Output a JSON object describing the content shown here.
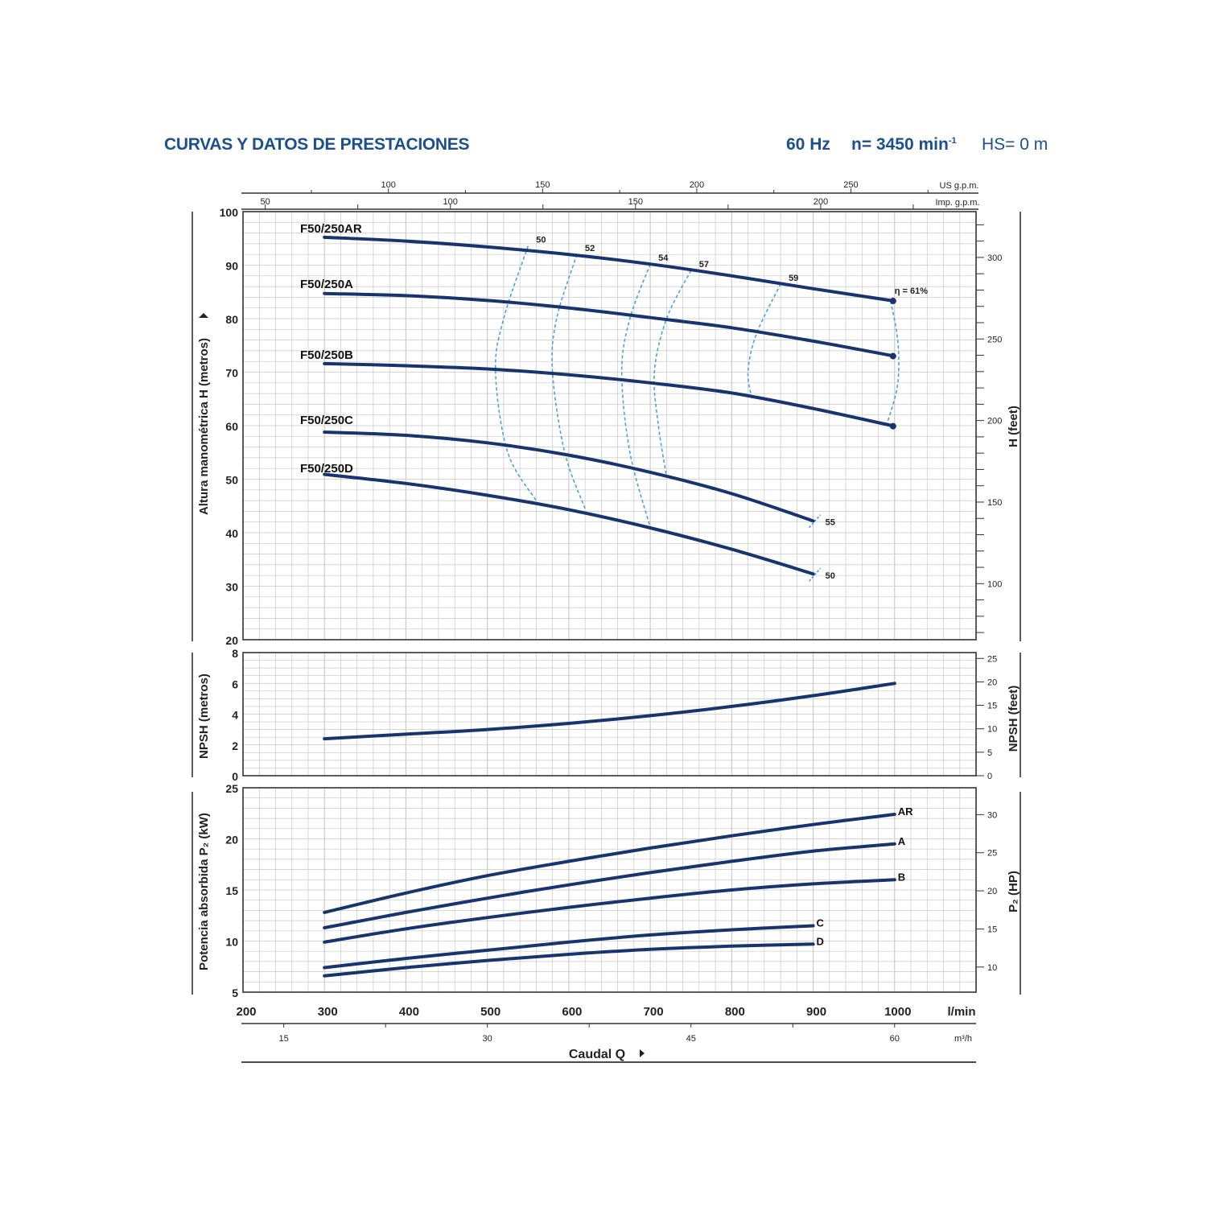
{
  "header": {
    "title": "CURVAS Y DATOS DE PRESTACIONES",
    "frequency": "60 Hz",
    "speed_prefix": "n= 3450 min",
    "speed_exp": "-1",
    "suction": "HS= 0 m"
  },
  "colors": {
    "curve": "#17346f",
    "efficiency": "#4aa3d8",
    "grid": "#c8c8c8",
    "title": "#1b4f8f"
  },
  "chart_data": [
    {
      "type": "line",
      "name": "head",
      "ylabel": "Altura manométrica H (metros)",
      "y2label": "H (feet)",
      "ylim": [
        20,
        100
      ],
      "xlim": [
        200,
        1100
      ],
      "yticks": [
        20,
        30,
        40,
        50,
        60,
        70,
        80,
        90,
        100
      ],
      "y2ticks": [
        100,
        150,
        200,
        250,
        300
      ],
      "top_axis_us": {
        "unit": "US g.p.m.",
        "ticks": [
          100,
          150,
          200,
          250
        ]
      },
      "top_axis_imp": {
        "unit": "Imp. g.p.m.",
        "ticks": [
          50,
          100,
          150,
          200
        ]
      },
      "series": [
        {
          "name": "F50/250AR",
          "x": [
            300,
            400,
            500,
            600,
            700,
            800,
            900,
            1000
          ],
          "y": [
            95.2,
            94.5,
            93.4,
            92.0,
            90.2,
            88.0,
            85.6,
            83.3
          ]
        },
        {
          "name": "F50/250A",
          "x": [
            300,
            400,
            500,
            600,
            700,
            800,
            900,
            1000
          ],
          "y": [
            84.7,
            84.3,
            83.4,
            82.0,
            80.2,
            78.3,
            75.8,
            73.0
          ]
        },
        {
          "name": "F50/250B",
          "x": [
            300,
            400,
            500,
            600,
            700,
            800,
            900,
            1000
          ],
          "y": [
            71.6,
            71.2,
            70.6,
            69.5,
            68.0,
            66.1,
            63.2,
            59.9
          ]
        },
        {
          "name": "F50/250C",
          "x": [
            300,
            400,
            500,
            600,
            700,
            800,
            900
          ],
          "y": [
            58.8,
            58.2,
            56.8,
            54.5,
            51.3,
            47.3,
            42.2
          ]
        },
        {
          "name": "F50/250D",
          "x": [
            300,
            400,
            500,
            600,
            700,
            800,
            900
          ],
          "y": [
            50.9,
            49.2,
            47.0,
            44.3,
            40.9,
            36.9,
            32.3
          ]
        }
      ],
      "efficiency_lines": [
        {
          "label": "50",
          "x": [
            550,
            520,
            510,
            525,
            560
          ],
          "y": [
            93.6,
            80.0,
            70.0,
            55.0,
            46.0
          ]
        },
        {
          "label": "52",
          "x": [
            610,
            585,
            580,
            595,
            620
          ],
          "y": [
            92.0,
            80.0,
            70.0,
            55.0,
            44.5
          ]
        },
        {
          "label": "54",
          "x": [
            700,
            675,
            665,
            675,
            700
          ],
          "y": [
            90.2,
            80.0,
            70.0,
            55.0,
            41.0
          ]
        },
        {
          "label": "57",
          "x": [
            750,
            720,
            705,
            710,
            720
          ],
          "y": [
            89.0,
            80.0,
            70.0,
            60.0,
            50.5
          ]
        },
        {
          "label": "59",
          "x": [
            860,
            830,
            820,
            825
          ],
          "y": [
            86.5,
            77.0,
            70.0,
            65.0
          ]
        },
        {
          "label": "η = 61%",
          "x": [
            995,
            1002,
            1005,
            1003,
            990
          ],
          "y": [
            83.3,
            78.0,
            73.0,
            67.0,
            60.0
          ]
        }
      ],
      "end_labels": [
        {
          "label": "55",
          "x": 905,
          "y": 42.0
        },
        {
          "label": "50",
          "x": 905,
          "y": 32.0
        }
      ]
    },
    {
      "type": "line",
      "name": "npsh",
      "ylabel": "NPSH (metros)",
      "y2label": "NPSH (feet)",
      "ylim": [
        0,
        8
      ],
      "yticks": [
        0,
        2,
        4,
        6,
        8
      ],
      "y2ticks": [
        0,
        5,
        10,
        15,
        20,
        25
      ],
      "series": [
        {
          "name": "NPSH",
          "x": [
            300,
            400,
            500,
            600,
            700,
            800,
            900,
            1000
          ],
          "y": [
            2.4,
            2.7,
            3.0,
            3.4,
            3.9,
            4.5,
            5.2,
            6.0
          ]
        }
      ]
    },
    {
      "type": "line",
      "name": "power",
      "ylabel": "Potencia absorbida P₂ (kW)",
      "y2label": "P₂ (HP)",
      "ylim": [
        5,
        25
      ],
      "yticks": [
        5,
        10,
        15,
        20,
        25
      ],
      "y2ticks": [
        10,
        15,
        20,
        25,
        30
      ],
      "series": [
        {
          "name": "AR",
          "x": [
            300,
            400,
            500,
            600,
            700,
            800,
            900,
            1000
          ],
          "y": [
            12.8,
            14.7,
            16.4,
            17.8,
            19.1,
            20.3,
            21.4,
            22.4
          ]
        },
        {
          "name": "A",
          "x": [
            300,
            400,
            500,
            600,
            700,
            800,
            900,
            1000
          ],
          "y": [
            11.3,
            12.8,
            14.2,
            15.5,
            16.7,
            17.8,
            18.8,
            19.5
          ]
        },
        {
          "name": "B",
          "x": [
            300,
            400,
            500,
            600,
            700,
            800,
            900,
            1000
          ],
          "y": [
            9.9,
            11.2,
            12.3,
            13.3,
            14.2,
            15.0,
            15.6,
            16.0
          ]
        },
        {
          "name": "C",
          "x": [
            300,
            400,
            500,
            600,
            700,
            800,
            900
          ],
          "y": [
            7.4,
            8.3,
            9.1,
            9.9,
            10.6,
            11.1,
            11.5
          ]
        },
        {
          "name": "D",
          "x": [
            300,
            400,
            500,
            600,
            700,
            800,
            900
          ],
          "y": [
            6.6,
            7.4,
            8.1,
            8.7,
            9.2,
            9.5,
            9.7
          ]
        }
      ]
    }
  ],
  "x_axis": {
    "lmin_unit": "l/min",
    "lmin_ticks": [
      200,
      300,
      400,
      500,
      600,
      700,
      800,
      900,
      1000
    ],
    "m3h_unit": "m³/h",
    "m3h_ticks": [
      15,
      30,
      45,
      60
    ],
    "label": "Caudal Q"
  }
}
